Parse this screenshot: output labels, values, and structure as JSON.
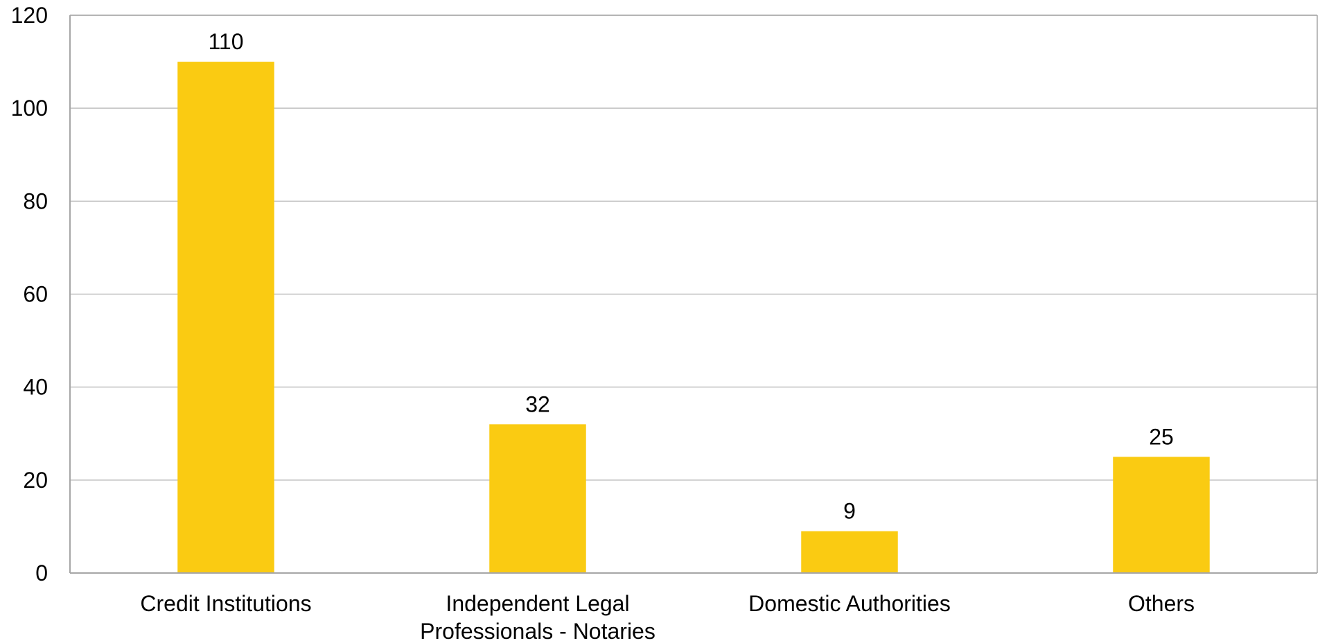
{
  "chart_data": {
    "type": "bar",
    "categories": [
      [
        "Credit Institutions"
      ],
      [
        "Independent Legal",
        "Professionals - Notaries"
      ],
      [
        "Domestic Authorities"
      ],
      [
        "Others"
      ]
    ],
    "values": [
      110,
      32,
      9,
      25
    ],
    "data_labels": [
      "110",
      "32",
      "9",
      "25"
    ],
    "title": "",
    "xlabel": "",
    "ylabel": "",
    "ylim": [
      0,
      120
    ],
    "yticks": [
      0,
      20,
      40,
      60,
      80,
      100,
      120
    ],
    "grid": true,
    "legend": "none",
    "bar_color": "#FACB12",
    "grid_color": "#BFBFBF",
    "axis_color": "#A6A6A6"
  }
}
